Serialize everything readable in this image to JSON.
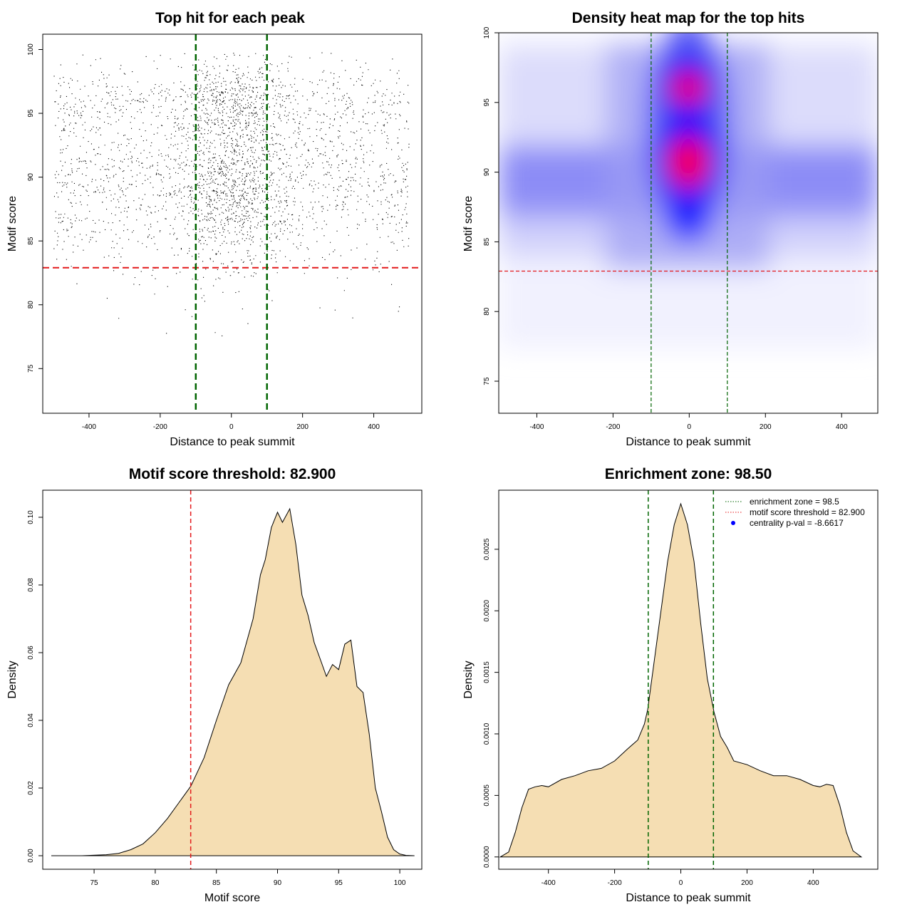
{
  "colors": {
    "threshold_line": "#e41a1c",
    "zone_line": "#006400",
    "density_fill": "#f5deb3",
    "heat_low": "#ffffff",
    "heat_mid": "#0000ff",
    "heat_high": "#ff0000"
  },
  "chart_data": [
    {
      "type": "scatter",
      "title": "Top hit for each peak",
      "xlabel": "Distance to peak summit",
      "ylabel": "Motif score",
      "xlim": [
        -530,
        535
      ],
      "ylim": [
        71.5,
        101.2
      ],
      "xticks": [
        -400,
        -200,
        0,
        200,
        400
      ],
      "yticks": [
        75,
        80,
        85,
        90,
        95,
        100
      ],
      "hlines": [
        82.9
      ],
      "vlines": [
        -100,
        100
      ],
      "point_generation": {
        "x_range": [
          -500,
          500
        ],
        "centered_fraction": 0.35,
        "score_modes": [
          {
            "mean": 89.8,
            "sd": 3.6,
            "weight": 0.78
          },
          {
            "mean": 96.2,
            "sd": 1.4,
            "weight": 0.22
          }
        ]
      }
    },
    {
      "type": "heatmap",
      "title": "Density heat map for the top hits",
      "xlabel": "Distance to peak summit",
      "ylabel": "Motif score",
      "xlim": [
        -500,
        495
      ],
      "ylim": [
        72.7,
        100
      ],
      "xticks": [
        -400,
        -200,
        0,
        200,
        400
      ],
      "yticks": [
        75,
        80,
        85,
        90,
        95,
        100
      ],
      "hlines": [
        82.9
      ],
      "vlines": [
        -100,
        100
      ],
      "hotspots": [
        {
          "x": 0,
          "y": 96.1
        },
        {
          "x": 0,
          "y": 90.7
        }
      ]
    },
    {
      "type": "area",
      "title": "Motif score threshold: 82.900",
      "xlabel": "Motif score",
      "ylabel": "Density",
      "xlim": [
        70.8,
        101.8
      ],
      "ylim": [
        -0.004,
        0.108
      ],
      "xticks": [
        75,
        80,
        85,
        90,
        95,
        100
      ],
      "yticks": [
        0.0,
        0.02,
        0.04,
        0.06,
        0.08,
        0.1
      ],
      "ytick_labels": [
        "0.00",
        "0.02",
        "0.04",
        "0.06",
        "0.08",
        "0.10"
      ],
      "vlines": [
        82.9
      ],
      "x": [
        71.5,
        74,
        76,
        77,
        78,
        79,
        80,
        81,
        82,
        82.9,
        84,
        85,
        86,
        87,
        88,
        88.6,
        89,
        89.5,
        90,
        90.4,
        91,
        91.5,
        92,
        92.5,
        93,
        93.5,
        94,
        94.5,
        95,
        95.5,
        96,
        96.5,
        97,
        97.5,
        98,
        98.5,
        99,
        99.5,
        100,
        100.5,
        101.2
      ],
      "y": [
        0.0,
        0.0,
        0.0003,
        0.0007,
        0.0018,
        0.0035,
        0.0068,
        0.011,
        0.016,
        0.0205,
        0.029,
        0.04,
        0.0505,
        0.057,
        0.07,
        0.083,
        0.0875,
        0.097,
        0.1015,
        0.0985,
        0.1025,
        0.092,
        0.077,
        0.071,
        0.063,
        0.058,
        0.053,
        0.0565,
        0.055,
        0.0625,
        0.0637,
        0.05,
        0.0482,
        0.036,
        0.02,
        0.013,
        0.0055,
        0.0018,
        0.0005,
        0.0001,
        0.0
      ]
    },
    {
      "type": "area",
      "title": "Enrichment zone: 98.50",
      "xlabel": "Distance to peak summit",
      "ylabel": "Density",
      "xlim": [
        -550,
        595
      ],
      "ylim": [
        -0.0001,
        0.00298
      ],
      "xticks": [
        -400,
        -200,
        0,
        200,
        400
      ],
      "yticks": [
        0.0,
        0.0005,
        0.001,
        0.0015,
        0.002,
        0.0025
      ],
      "ytick_labels": [
        "0.0000",
        "0.0005",
        "0.0010",
        "0.0015",
        "0.0020",
        "0.0025"
      ],
      "vlines": [
        -98.5,
        98.5
      ],
      "legend": [
        {
          "label": "enrichment zone = 98.5",
          "style": "dotted",
          "color": "#006400"
        },
        {
          "label": "motif score threshold = 82.900",
          "style": "dotted",
          "color": "#e41a1c"
        },
        {
          "label": "centrality p-val = -8.6617",
          "style": "point",
          "color": "#0000ff"
        }
      ],
      "legend_position": "top-right",
      "x": [
        -545,
        -520,
        -500,
        -480,
        -460,
        -440,
        -420,
        -400,
        -360,
        -320,
        -280,
        -240,
        -200,
        -160,
        -130,
        -110,
        -100,
        -80,
        -60,
        -40,
        -20,
        0,
        20,
        40,
        60,
        80,
        100,
        120,
        140,
        160,
        200,
        240,
        280,
        320,
        360,
        400,
        420,
        440,
        460,
        480,
        500,
        520,
        545
      ],
      "y": [
        0.0,
        4e-05,
        0.0002,
        0.0004,
        0.00055,
        0.00057,
        0.00058,
        0.00057,
        0.00063,
        0.00066,
        0.0007,
        0.00072,
        0.00078,
        0.00088,
        0.00095,
        0.00108,
        0.0012,
        0.0016,
        0.002,
        0.0024,
        0.0027,
        0.00287,
        0.0027,
        0.0024,
        0.0019,
        0.00145,
        0.00118,
        0.00098,
        0.00089,
        0.00078,
        0.00075,
        0.0007,
        0.00066,
        0.00066,
        0.00063,
        0.00058,
        0.00057,
        0.00059,
        0.00058,
        0.00042,
        0.0002,
        5e-05,
        0.0
      ]
    }
  ]
}
